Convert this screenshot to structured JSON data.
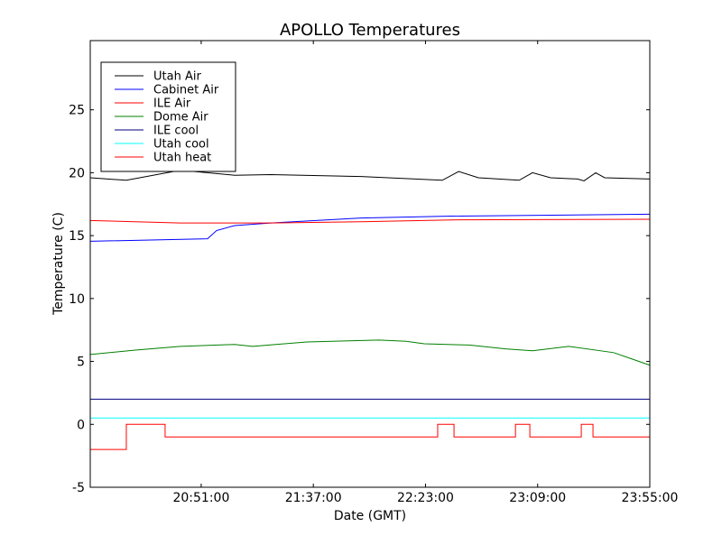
{
  "chart_data": {
    "type": "line",
    "title": "APOLLO Temperatures",
    "xlabel": "Date (GMT)",
    "ylabel": "Temperature (C)",
    "x_unit": "minutes after 20:00 GMT",
    "xlim": [
      5.5,
      235
    ],
    "ylim": [
      -5,
      30.5
    ],
    "xticks": [
      {
        "value": 51,
        "label": "20:51:00"
      },
      {
        "value": 97,
        "label": "21:37:00"
      },
      {
        "value": 143,
        "label": "22:23:00"
      },
      {
        "value": 189,
        "label": "23:09:00"
      },
      {
        "value": 235,
        "label": "23:55:00"
      }
    ],
    "yticks": [
      {
        "value": -5,
        "label": "-5"
      },
      {
        "value": 0,
        "label": "0"
      },
      {
        "value": 5,
        "label": "5"
      },
      {
        "value": 10,
        "label": "10"
      },
      {
        "value": 15,
        "label": "15"
      },
      {
        "value": 20,
        "label": "20"
      },
      {
        "value": 25,
        "label": "25"
      }
    ],
    "grid": false,
    "legend_placement": "top-left",
    "series": [
      {
        "name": "Utah Air",
        "color": "#000000",
        "step": false,
        "x": [
          5.5,
          20.3,
          42.5,
          64.7,
          79.5,
          116.6,
          149.9,
          156.6,
          164.7,
          181.4,
          186.9,
          194.3,
          205.4,
          208,
          212.8,
          216.5,
          235
        ],
        "y": [
          19.6,
          19.4,
          20.2,
          19.8,
          19.85,
          19.7,
          19.4,
          20.1,
          19.6,
          19.4,
          20.0,
          19.6,
          19.5,
          19.35,
          20.0,
          19.6,
          19.5
        ]
      },
      {
        "name": "Cabinet Air",
        "color": "#0000ff",
        "step": false,
        "x": [
          5.5,
          53.6,
          57.3,
          64.7,
          79.5,
          116.6,
          153.6,
          235
        ],
        "y": [
          14.55,
          14.75,
          15.4,
          15.8,
          16.0,
          16.4,
          16.55,
          16.7
        ]
      },
      {
        "name": "ILE Air",
        "color": "#ff0000",
        "step": false,
        "x": [
          5.5,
          42.5,
          79.5,
          116.6,
          153.6,
          235
        ],
        "y": [
          16.2,
          16.0,
          16.0,
          16.1,
          16.25,
          16.3
        ]
      },
      {
        "name": "Dome Air",
        "color": "#008000",
        "step": false,
        "x": [
          5.5,
          24,
          42.5,
          64.7,
          72.1,
          94.4,
          124,
          135.1,
          142.5,
          161,
          175.8,
          186.9,
          201.7,
          220.2,
          227.6,
          235
        ],
        "y": [
          5.55,
          5.9,
          6.2,
          6.35,
          6.2,
          6.55,
          6.7,
          6.6,
          6.4,
          6.3,
          6.0,
          5.85,
          6.2,
          5.7,
          5.2,
          4.7
        ]
      },
      {
        "name": "ILE cool",
        "color": "#000080",
        "step": false,
        "x": [
          5.5,
          235
        ],
        "y": [
          2,
          2
        ]
      },
      {
        "name": "Utah cool",
        "color": "#00ffff",
        "step": false,
        "x": [
          5.5,
          235
        ],
        "y": [
          0.5,
          0.5
        ]
      },
      {
        "name": "Utah heat",
        "color": "#ff0000",
        "step": true,
        "x": [
          5.5,
          20.3,
          36.2,
          148,
          154.7,
          179.9,
          185.8,
          206.9,
          211.7,
          235
        ],
        "y": [
          -2,
          0,
          -1,
          0,
          -1,
          0,
          -1,
          0,
          -1,
          -1
        ]
      }
    ]
  }
}
